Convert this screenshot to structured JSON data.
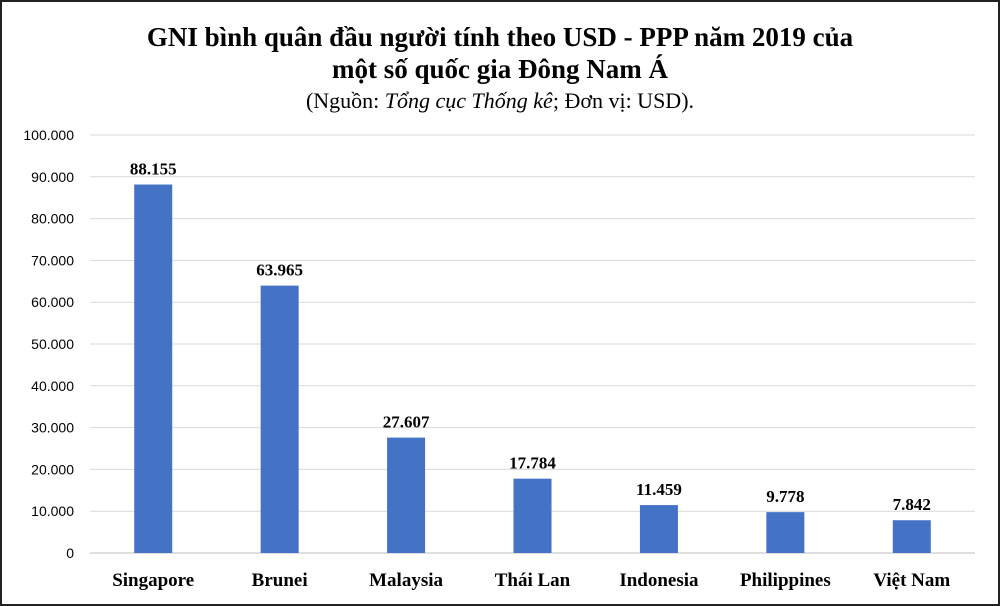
{
  "chart_data": {
    "type": "bar",
    "title_line1": "GNI bình quân đầu người tính theo USD - PPP năm 2019 của",
    "title_line2": "một số quốc gia Đông Nam Á",
    "subtitle": {
      "part1": "(Nguồn: ",
      "part2": "Tổng cục Thống kê",
      "part3": "; Đơn vị: USD)."
    },
    "categories": [
      "Singapore",
      "Brunei",
      "Malaysia",
      "Thái Lan",
      "Indonesia",
      "Philippines",
      "Việt Nam"
    ],
    "values": [
      88155,
      63965,
      27607,
      17784,
      11459,
      9778,
      7842
    ],
    "data_labels": [
      "88.155",
      "63.965",
      "27.607",
      "17.784",
      "11.459",
      "9.778",
      "7.842"
    ],
    "yticks": [
      "0",
      "10.000",
      "20.000",
      "30.000",
      "40.000",
      "50.000",
      "60.000",
      "70.000",
      "80.000",
      "90.000",
      "100.000"
    ],
    "ylim": [
      0,
      100000
    ],
    "grid": true,
    "bar_color": "#4472c4",
    "grid_color": "#d9d9d9"
  }
}
